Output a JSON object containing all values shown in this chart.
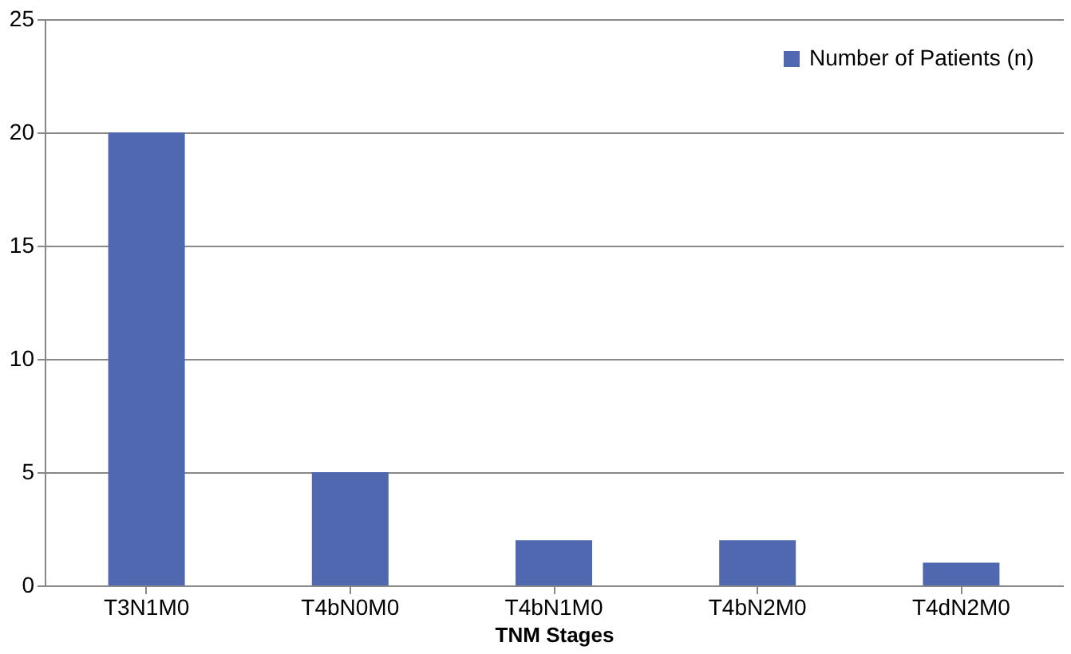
{
  "chart_data": {
    "type": "bar",
    "xlabel": "TNM Stages",
    "categories": [
      "T3N1M0",
      "T4bN0M0",
      "T4bN1M0",
      "T4bN2M0",
      "T4dN2M0"
    ],
    "series": [
      {
        "name": "Number of Patients (n)",
        "color": "#5068b0",
        "values": [
          20,
          5,
          2,
          2,
          1
        ]
      }
    ],
    "ylim": [
      0,
      25
    ],
    "yticks": [
      0,
      5,
      10,
      15,
      20,
      25
    ],
    "grid": "y",
    "legend": "top right"
  }
}
